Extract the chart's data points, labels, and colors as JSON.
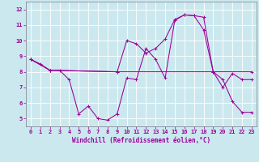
{
  "xlabel": "Windchill (Refroidissement éolien,°C)",
  "background_color": "#cce8ef",
  "grid_color": "#ffffff",
  "line_color": "#990099",
  "spine_color": "#7a7a8a",
  "xlim": [
    -0.5,
    23.5
  ],
  "ylim": [
    4.5,
    12.5
  ],
  "xticks": [
    0,
    1,
    2,
    3,
    4,
    5,
    6,
    7,
    8,
    9,
    10,
    11,
    12,
    13,
    14,
    15,
    16,
    17,
    18,
    19,
    20,
    21,
    22,
    23
  ],
  "yticks": [
    5,
    6,
    7,
    8,
    9,
    10,
    11,
    12
  ],
  "line1_x": [
    0,
    1,
    2,
    3,
    4,
    5,
    6,
    7,
    8,
    9,
    10,
    11,
    12,
    13,
    14,
    15,
    16,
    17,
    18,
    19,
    20,
    21,
    22,
    23
  ],
  "line1_y": [
    8.8,
    8.5,
    8.1,
    8.1,
    7.5,
    5.3,
    5.8,
    5.0,
    4.9,
    5.3,
    7.6,
    7.5,
    9.5,
    8.8,
    7.6,
    11.3,
    11.65,
    11.6,
    11.5,
    8.0,
    7.5,
    6.1,
    5.4,
    5.4
  ],
  "line2_x": [
    0,
    2,
    9,
    19,
    23
  ],
  "line2_y": [
    8.8,
    8.1,
    8.0,
    8.0,
    8.0
  ],
  "line3_x": [
    0,
    2,
    9,
    10,
    11,
    12,
    13,
    14,
    15,
    16,
    17,
    18,
    19,
    20,
    21,
    22,
    23
  ],
  "line3_y": [
    8.8,
    8.1,
    8.0,
    10.0,
    9.8,
    9.2,
    9.5,
    10.1,
    11.35,
    11.65,
    11.6,
    10.7,
    8.0,
    7.0,
    7.9,
    7.5,
    7.5
  ],
  "tick_fontsize": 5.0,
  "xlabel_fontsize": 5.5,
  "marker_size": 3.0,
  "line_width": 0.75
}
